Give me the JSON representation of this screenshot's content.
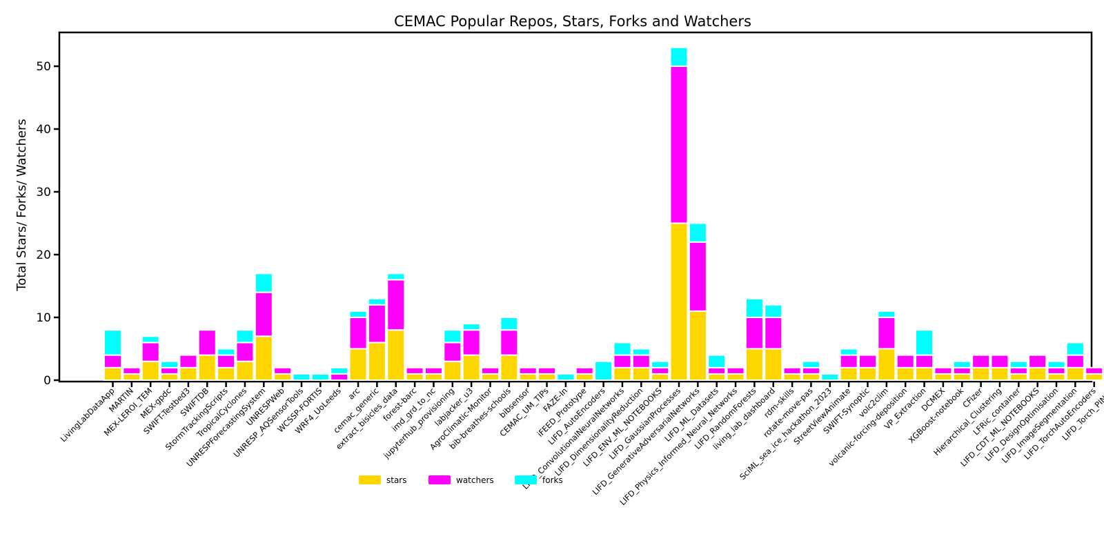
{
  "chart_data": {
    "type": "bar",
    "stacked": true,
    "title": "CEMAC Popular Repos, Stars, Forks and Watchers",
    "xlabel": "",
    "ylabel": "Total Stars/ Forks/ Watchers",
    "ylim": [
      0,
      55
    ],
    "yticks": [
      0,
      10,
      20,
      30,
      40,
      50
    ],
    "grid": false,
    "legend_position": "bottom-center",
    "colors": {
      "stars": "#FFD700",
      "watchers": "#FF00FF",
      "forks": "#00FFFF"
    },
    "categories": [
      "LivingLabDataApp",
      "MARTIN",
      "MEX-LEROI_TEM",
      "MEX-gpdc",
      "SWIFT-Testbed3",
      "SWIFTDB",
      "StormTrackingScripts",
      "TropicalCyclones",
      "UNRESPForecastingSystem",
      "UNRESPWeb",
      "UNRESP_AQSensorTools",
      "WCSSP-FORTIS",
      "WRF4_UoLeeds",
      "arc",
      "cemac_generic",
      "extract_bisicles_data",
      "forest-barc",
      "imd_grd_to_nc",
      "jupyterhub_provisioning",
      "labjacker_u3",
      "AgroClimatic-Monitor",
      "bib-breathes-schools",
      "bibsensor",
      "CEMAC_UM_TIPs",
      "FAZE-In",
      "iFEED_Prototype",
      "LIFD_AutoEncoders",
      "LIFD_ConvolutionalNeuralNetworks",
      "LIFD_DimensionalityReduction",
      "LIFD_ENV_ML_NOTEBOOKS",
      "LIFD_GaussianProcesses",
      "LIFD_GenerativeAdversarialNetworks",
      "LIFD_ML_Datasets",
      "LIFD_Physics_Informed_Neural_Networks",
      "LIFD_RandomForests",
      "living_lab_dashboard",
      "rdm-skills",
      "rotate-move-pas",
      "SciML_sea_ice_hackathon_2023",
      "StreetViewAnimate",
      "SWIFT-Synoptic",
      "volc2clim",
      "volcanic-forcing-deposition",
      "VP_Extraction",
      "DCMEX",
      "XGBoost-notebook",
      "CFizer",
      "Hierarchical_Clustering",
      "LFRic_container",
      "LIFD_CDT_ML_NOTEBOOKS",
      "LIFD_DesignOptimisation",
      "LIFD_ImageSegmentation",
      "LIFD_TorchAutoEncoders",
      "LIFD_Torch_PINNS"
    ],
    "series": [
      {
        "name": "stars",
        "values": [
          2,
          1,
          3,
          1,
          2,
          4,
          2,
          3,
          7,
          1,
          0,
          0,
          0,
          5,
          6,
          8,
          1,
          1,
          3,
          4,
          1,
          4,
          1,
          1,
          0,
          1,
          0,
          2,
          2,
          1,
          25,
          11,
          1,
          1,
          5,
          5,
          1,
          1,
          0,
          2,
          2,
          5,
          2,
          2,
          1,
          1,
          2,
          2,
          1,
          2,
          1,
          2,
          1,
          2
        ]
      },
      {
        "name": "watchers",
        "values": [
          2,
          1,
          3,
          1,
          2,
          4,
          2,
          3,
          7,
          1,
          0,
          0,
          1,
          5,
          6,
          8,
          1,
          1,
          3,
          4,
          1,
          4,
          1,
          1,
          0,
          1,
          0,
          2,
          2,
          1,
          25,
          11,
          1,
          1,
          5,
          5,
          1,
          1,
          0,
          2,
          2,
          5,
          2,
          2,
          1,
          1,
          2,
          2,
          1,
          2,
          1,
          2,
          1,
          2
        ]
      },
      {
        "name": "forks",
        "values": [
          4,
          0,
          1,
          1,
          0,
          0,
          1,
          2,
          3,
          0,
          1,
          1,
          1,
          1,
          1,
          1,
          0,
          0,
          2,
          1,
          0,
          2,
          0,
          0,
          1,
          0,
          3,
          2,
          1,
          1,
          3,
          3,
          2,
          0,
          3,
          2,
          0,
          1,
          1,
          1,
          0,
          1,
          0,
          4,
          0,
          1,
          0,
          0,
          1,
          0,
          1,
          2,
          0,
          0
        ]
      }
    ]
  }
}
